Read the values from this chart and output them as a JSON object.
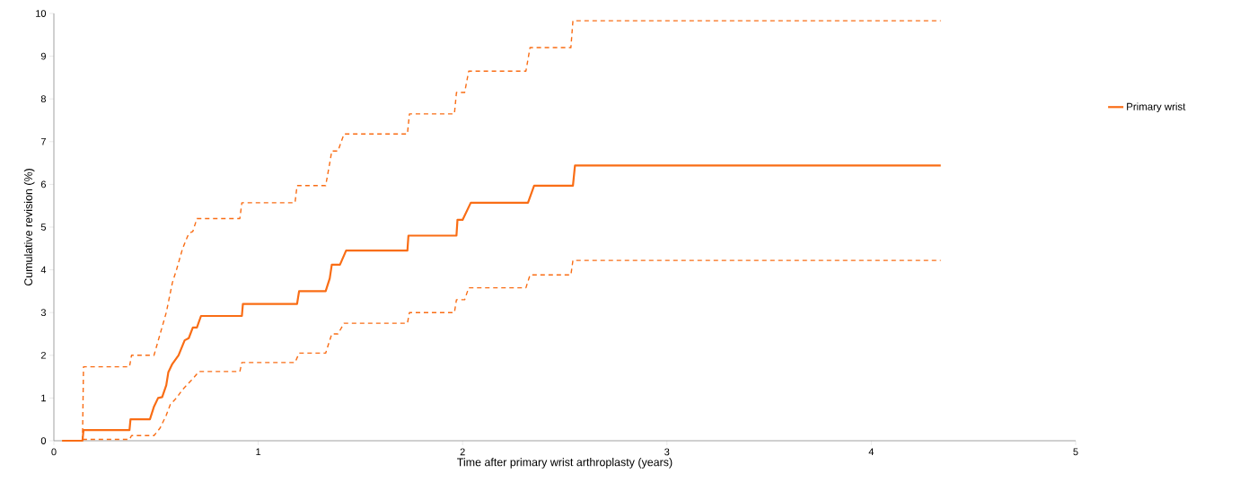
{
  "chart_data": {
    "type": "line",
    "xlabel": "Time after primary wrist arthroplasty (years)",
    "ylabel": "Cumulative revision (%)",
    "xlim": [
      0,
      5
    ],
    "xticks": [
      0,
      1,
      2,
      3,
      4,
      5
    ],
    "ylim": [
      0,
      10
    ],
    "yticks": [
      0,
      1,
      2,
      3,
      4,
      5,
      6,
      7,
      8,
      9,
      10
    ],
    "grid": false,
    "legend": "right",
    "series": [
      {
        "name": "Primary wrist",
        "color": "#f96d15",
        "line_style": "solid",
        "x": [
          0.04,
          0.14,
          0.145,
          0.37,
          0.375,
          0.47,
          0.49,
          0.51,
          0.53,
          0.55,
          0.56,
          0.58,
          0.61,
          0.64,
          0.66,
          0.68,
          0.7,
          0.72,
          0.92,
          0.925,
          1.19,
          1.2,
          1.33,
          1.35,
          1.36,
          1.4,
          1.43,
          1.73,
          1.735,
          1.97,
          1.975,
          2.0,
          2.04,
          2.32,
          2.35,
          2.54,
          2.55,
          4.34
        ],
        "values": [
          0,
          0,
          0.25,
          0.25,
          0.5,
          0.5,
          0.8,
          1.0,
          1.02,
          1.3,
          1.6,
          1.8,
          2.0,
          2.35,
          2.4,
          2.65,
          2.65,
          2.92,
          2.92,
          3.2,
          3.2,
          3.5,
          3.5,
          3.8,
          4.12,
          4.12,
          4.45,
          4.45,
          4.8,
          4.8,
          5.17,
          5.17,
          5.57,
          5.57,
          5.97,
          5.97,
          6.44,
          6.44
        ]
      },
      {
        "color": "#f96d15",
        "line_style": "dashed",
        "x": [
          0.14,
          0.145,
          0.37,
          0.38,
          0.49,
          0.52,
          0.55,
          0.58,
          0.6,
          0.63,
          0.66,
          0.68,
          0.7,
          0.91,
          0.92,
          1.18,
          1.19,
          1.33,
          1.35,
          1.36,
          1.39,
          1.42,
          1.73,
          1.74,
          1.96,
          1.97,
          2.01,
          2.03,
          2.31,
          2.33,
          2.53,
          2.54,
          4.34
        ],
        "values": [
          0,
          1.73,
          1.73,
          2.0,
          2.0,
          2.5,
          3.0,
          3.7,
          4.0,
          4.5,
          4.85,
          4.9,
          5.2,
          5.2,
          5.57,
          5.57,
          5.97,
          5.97,
          6.5,
          6.78,
          6.78,
          7.18,
          7.18,
          7.65,
          7.65,
          8.15,
          8.15,
          8.65,
          8.65,
          9.2,
          9.2,
          9.83,
          9.83
        ]
      },
      {
        "color": "#f96d15",
        "line_style": "dashed",
        "x": [
          0.14,
          0.37,
          0.38,
          0.49,
          0.52,
          0.55,
          0.57,
          0.6,
          0.63,
          0.66,
          0.68,
          0.71,
          0.91,
          0.92,
          1.18,
          1.2,
          1.33,
          1.36,
          1.39,
          1.42,
          1.73,
          1.74,
          1.96,
          1.97,
          2.01,
          2.03,
          2.31,
          2.33,
          2.53,
          2.54,
          4.34
        ],
        "values": [
          0.03,
          0.03,
          0.12,
          0.12,
          0.3,
          0.6,
          0.85,
          1.0,
          1.2,
          1.35,
          1.45,
          1.62,
          1.62,
          1.83,
          1.83,
          2.05,
          2.05,
          2.5,
          2.5,
          2.75,
          2.75,
          3.0,
          3.0,
          3.3,
          3.3,
          3.58,
          3.58,
          3.88,
          3.88,
          4.22,
          4.22
        ]
      }
    ]
  }
}
